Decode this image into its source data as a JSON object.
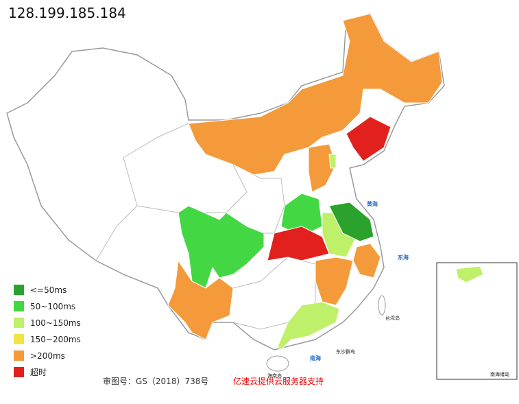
{
  "title": "128.199.185.184",
  "legend": [
    {
      "label": "<=50ms",
      "color": "#2ba22b"
    },
    {
      "label": "50~100ms",
      "color": "#43d843"
    },
    {
      "label": "100~150ms",
      "color": "#bef06a"
    },
    {
      "label": "150~200ms",
      "color": "#f2e444"
    },
    {
      "label": ">200ms",
      "color": "#f59a3a"
    },
    {
      "label": "超时",
      "color": "#e2201e"
    }
  ],
  "map_labels": {
    "yellow_sea": "黄海",
    "east_sea": "东海",
    "south_sea": "南海",
    "taiwan": "台湾岛",
    "hainan": "海南岛",
    "dongsha": "东沙群岛",
    "south_islands": "南海诸岛"
  },
  "footer": {
    "approval": "审图号：GS（2018）738号",
    "credit": "亿速云提供云服务器支持"
  }
}
